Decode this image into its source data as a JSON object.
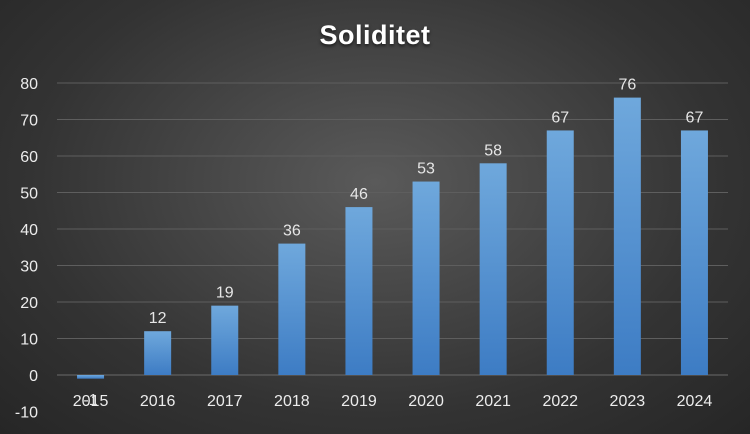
{
  "chart_data": {
    "type": "bar",
    "title": "Soliditet",
    "xlabel": "",
    "ylabel": "",
    "categories": [
      "2015",
      "2016",
      "2017",
      "2018",
      "2019",
      "2020",
      "2021",
      "2022",
      "2023",
      "2024"
    ],
    "values": [
      -1,
      12,
      19,
      36,
      46,
      53,
      58,
      67,
      76,
      67
    ],
    "data_labels": [
      "-1",
      "12",
      "19",
      "36",
      "46",
      "53",
      "58",
      "67",
      "76",
      "67"
    ],
    "ylim": [
      -10,
      80
    ],
    "yticks": [
      -10,
      0,
      10,
      20,
      30,
      40,
      50,
      60,
      70,
      80
    ],
    "grid": true,
    "legend": "none",
    "colors": {
      "bar_top": "#6fa8dc",
      "bar_bottom": "#3d7cc4",
      "grid": "#5e5e5e",
      "text": "#ececec",
      "title": "#ffffff"
    }
  }
}
